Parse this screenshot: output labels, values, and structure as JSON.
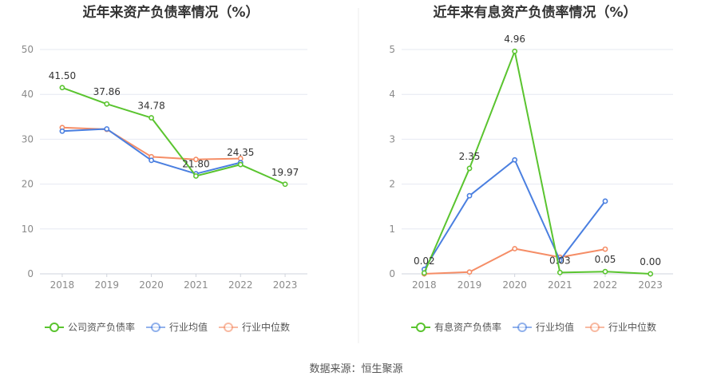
{
  "source": "数据来源：恒生聚源",
  "colors": {
    "company": "#5ac42f",
    "avg": "#4a7fe0",
    "median": "#f58d66",
    "grid": "#e6e9f2",
    "axis": "#cfd3dc"
  },
  "chart_data": [
    {
      "type": "line",
      "title": "近年来资产负债率情况（%）",
      "x": [
        "2018",
        "2019",
        "2020",
        "2021",
        "2022",
        "2023"
      ],
      "ylim": [
        0,
        50
      ],
      "yticks": [
        0,
        10,
        20,
        30,
        40,
        50
      ],
      "grid": true,
      "legend_position": "bottom",
      "series": [
        {
          "name": "公司资产负债率",
          "color": "#5ac42f",
          "values": [
            41.5,
            37.86,
            34.78,
            21.8,
            24.35,
            19.97
          ],
          "labels": [
            "41.50",
            "37.86",
            "34.78",
            "21.80",
            "24.35",
            "19.97"
          ]
        },
        {
          "name": "行业均值",
          "color": "#4a7fe0",
          "values": [
            31.8,
            32.3,
            25.3,
            22.3,
            24.8,
            null
          ]
        },
        {
          "name": "行业中位数",
          "color": "#f58d66",
          "values": [
            32.6,
            32.2,
            26.1,
            25.5,
            25.7,
            null
          ]
        }
      ]
    },
    {
      "type": "line",
      "title": "近年来有息资产负债率情况（%）",
      "x": [
        "2018",
        "2019",
        "2020",
        "2021",
        "2022",
        "2023"
      ],
      "ylim": [
        0,
        5
      ],
      "yticks": [
        0,
        1,
        2,
        3,
        4,
        5
      ],
      "grid": true,
      "legend_position": "bottom",
      "series": [
        {
          "name": "有息资产负债率",
          "color": "#5ac42f",
          "values": [
            0.02,
            2.35,
            4.96,
            0.03,
            0.05,
            0.0
          ],
          "labels": [
            "0.02",
            "2.35",
            "4.96",
            "0.03",
            "0.05",
            "0.00"
          ]
        },
        {
          "name": "行业均值",
          "color": "#4a7fe0",
          "values": [
            0.1,
            1.74,
            2.54,
            0.3,
            1.62,
            null
          ]
        },
        {
          "name": "行业中位数",
          "color": "#f58d66",
          "values": [
            0.0,
            0.04,
            0.56,
            0.37,
            0.55,
            null
          ]
        }
      ]
    }
  ]
}
